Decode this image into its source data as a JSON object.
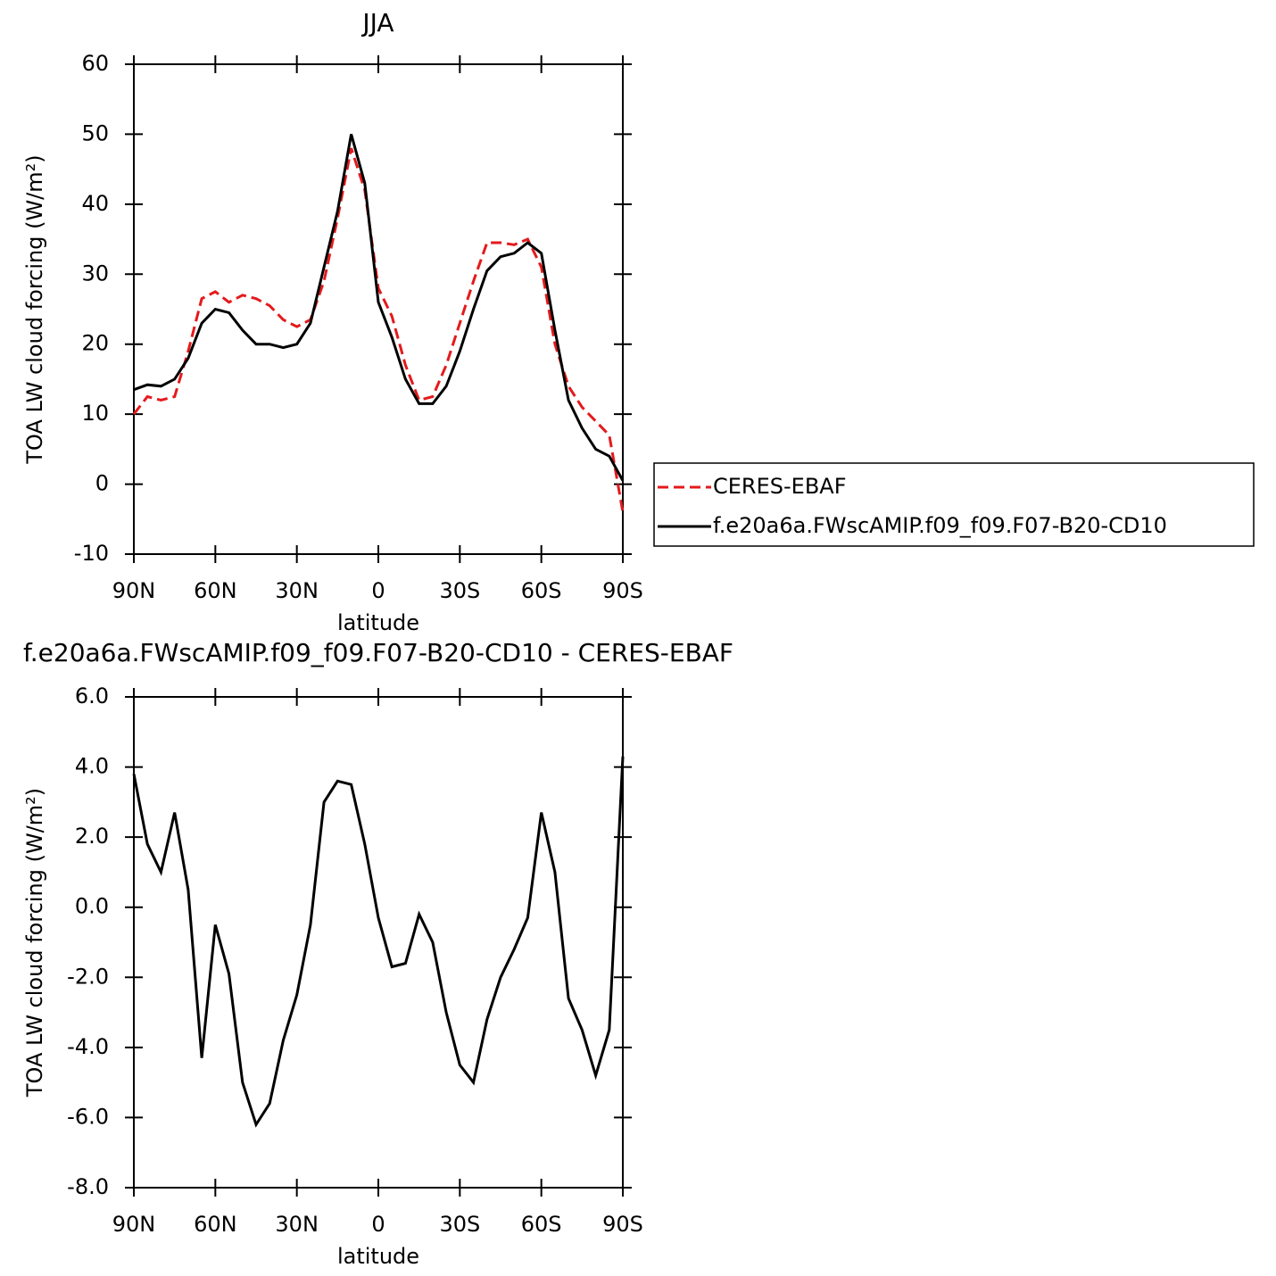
{
  "chart_data": [
    {
      "type": "line",
      "title": "JJA",
      "xlabel": "latitude",
      "ylabel": "TOA LW cloud forcing (W/m²)",
      "x": [
        90,
        85,
        80,
        75,
        70,
        65,
        60,
        55,
        50,
        45,
        40,
        35,
        30,
        25,
        20,
        15,
        10,
        5,
        0,
        -5,
        -10,
        -15,
        -20,
        -25,
        -30,
        -35,
        -40,
        -45,
        -50,
        -55,
        -60,
        -65,
        -70,
        -75,
        -80,
        -85,
        -90
      ],
      "series": [
        {
          "name": "CERES-EBAF",
          "color": "#e41a1c",
          "linestyle": "dashed",
          "values": [
            10,
            12.5,
            12,
            12.5,
            19,
            26.5,
            27.5,
            26,
            27,
            26.5,
            25.5,
            23.5,
            22.5,
            23.5,
            29,
            38,
            48,
            42,
            28,
            24,
            17,
            12,
            12.5,
            17,
            23,
            29,
            34.5,
            34.5,
            34.2,
            35,
            31,
            20,
            14,
            11,
            9,
            7,
            -4
          ]
        },
        {
          "name": "f.e20a6a.FWscAMIP.f09_f09.F07-B20-CD10",
          "color": "#000000",
          "linestyle": "solid",
          "values": [
            13.5,
            14.2,
            14,
            15,
            18,
            23,
            25,
            24.5,
            22,
            20,
            20,
            19.5,
            20,
            23,
            31,
            39,
            50,
            43,
            26,
            21,
            15,
            11.5,
            11.5,
            14,
            19,
            25,
            30.5,
            32.5,
            33,
            34.5,
            33,
            22,
            12,
            8,
            5,
            4,
            0.5
          ]
        }
      ],
      "xlim": [
        90,
        -90
      ],
      "xticks": [
        {
          "value": 90,
          "label": "90N"
        },
        {
          "value": 60,
          "label": "60N"
        },
        {
          "value": 30,
          "label": "30N"
        },
        0,
        {
          "value": -30,
          "label": "30S"
        },
        {
          "value": -60,
          "label": "60S"
        },
        {
          "value": -90,
          "label": "90S"
        }
      ],
      "ylim": [
        -10,
        60
      ],
      "yticks": [
        -10,
        0,
        10,
        20,
        30,
        40,
        50,
        60
      ],
      "legend": "right"
    },
    {
      "type": "line",
      "title": "f.e20a6a.FWscAMIP.f09_f09.F07-B20-CD10 - CERES-EBAF",
      "xlabel": "latitude",
      "ylabel": "TOA LW cloud forcing (W/m²)",
      "x": [
        90,
        85,
        80,
        75,
        70,
        65,
        60,
        55,
        50,
        45,
        40,
        35,
        30,
        25,
        20,
        15,
        10,
        5,
        0,
        -5,
        -10,
        -15,
        -20,
        -25,
        -30,
        -35,
        -40,
        -45,
        -50,
        -55,
        -60,
        -65,
        -70,
        -75,
        -80,
        -85,
        -90
      ],
      "series": [
        {
          "color": "#000000",
          "linestyle": "solid",
          "values": [
            3.8,
            1.8,
            1.0,
            2.7,
            0.5,
            -4.3,
            -0.5,
            -1.9,
            -5.0,
            -6.2,
            -5.6,
            -3.8,
            -2.5,
            -0.5,
            3.0,
            3.6,
            3.5,
            1.8,
            -0.3,
            -1.7,
            -1.6,
            -0.2,
            -1.0,
            -3.0,
            -4.5,
            -5.0,
            -3.2,
            -2.0,
            -1.2,
            -0.3,
            2.7,
            1.0,
            -2.6,
            -3.5,
            -4.8,
            -3.5,
            4.3
          ]
        }
      ],
      "xlim": [
        90,
        -90
      ],
      "xticks": [
        {
          "value": 90,
          "label": "90N"
        },
        {
          "value": 60,
          "label": "60N"
        },
        {
          "value": 30,
          "label": "30N"
        },
        0,
        {
          "value": -30,
          "label": "30S"
        },
        {
          "value": -60,
          "label": "60S"
        },
        {
          "value": -90,
          "label": "90S"
        }
      ],
      "ylim": [
        -8,
        6
      ],
      "yticks": [
        {
          "value": -8,
          "label": "-8.0"
        },
        {
          "value": -6,
          "label": "-6.0"
        },
        {
          "value": -4,
          "label": "-4.0"
        },
        {
          "value": -2,
          "label": "-2.0"
        },
        {
          "value": 0,
          "label": "0.0"
        },
        {
          "value": 2,
          "label": "2.0"
        },
        {
          "value": 4,
          "label": "4.0"
        },
        {
          "value": 6,
          "label": "6.0"
        }
      ]
    }
  ]
}
